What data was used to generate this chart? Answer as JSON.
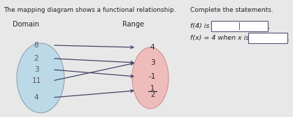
{
  "title": "The mapping diagram shows a functional relationship.",
  "complete_title": "Complete the statements.",
  "domain_label": "Domain",
  "range_label": "Range",
  "domain_values": [
    "8",
    "2",
    "3",
    "11",
    "4"
  ],
  "range_values_display": [
    "4",
    "3",
    "-1",
    "1/2"
  ],
  "arrows": [
    [
      0,
      0
    ],
    [
      1,
      1
    ],
    [
      2,
      2
    ],
    [
      3,
      1
    ],
    [
      4,
      3
    ]
  ],
  "statement1_pre": "f(4) is",
  "statement2_pre": "f(x) = 4 when x is",
  "domain_ellipse_color": "#b8d8e8",
  "range_ellipse_color": "#f0b8b8",
  "bg_color": "#e8e8e8",
  "text_color": "#222222",
  "arrow_color": "#444466",
  "domain_text_color": "#555566",
  "range_text_color": "#222222"
}
